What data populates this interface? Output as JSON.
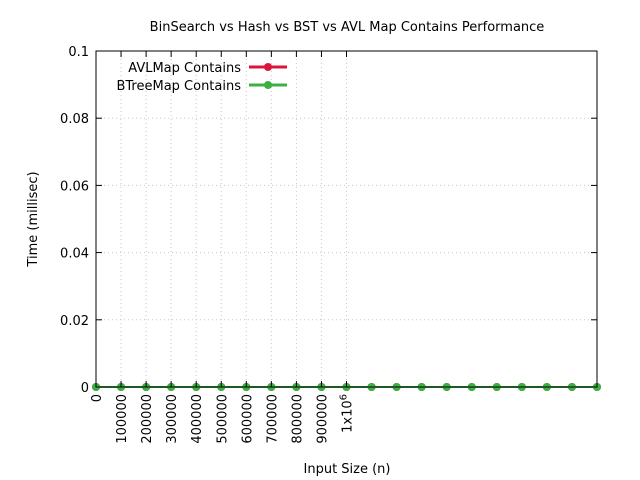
{
  "chart_data": {
    "type": "line",
    "title": "BinSearch vs Hash vs BST vs AVL Map Contains Performance",
    "xlabel": "Input Size (n)",
    "ylabel": "Time (millisec)",
    "xlim": [
      0,
      2000000
    ],
    "ylim": [
      0,
      0.1
    ],
    "x_ticks": [
      {
        "value": 0,
        "label": "0"
      },
      {
        "value": 100000,
        "label": "100000"
      },
      {
        "value": 200000,
        "label": "200000"
      },
      {
        "value": 300000,
        "label": "300000"
      },
      {
        "value": 400000,
        "label": "400000"
      },
      {
        "value": 500000,
        "label": "500000"
      },
      {
        "value": 600000,
        "label": "600000"
      },
      {
        "value": 700000,
        "label": "700000"
      },
      {
        "value": 800000,
        "label": "800000"
      },
      {
        "value": 900000,
        "label": "900000"
      },
      {
        "value": 1000000,
        "label": "1x10",
        "sup": "6"
      }
    ],
    "y_ticks": [
      {
        "value": 0,
        "label": "0"
      },
      {
        "value": 0.02,
        "label": "0.02"
      },
      {
        "value": 0.04,
        "label": "0.04"
      },
      {
        "value": 0.06,
        "label": "0.06"
      },
      {
        "value": 0.08,
        "label": "0.08"
      },
      {
        "value": 0.1,
        "label": "0.1"
      }
    ],
    "grid": true,
    "legend_position": "top-left",
    "x": [
      0,
      100000,
      200000,
      300000,
      400000,
      500000,
      600000,
      700000,
      800000,
      900000,
      1000000,
      1100000,
      1200000,
      1300000,
      1400000,
      1500000,
      1600000,
      1700000,
      1800000,
      1900000,
      2000000
    ],
    "series": [
      {
        "name": "AVLMap Contains",
        "color": "#dc143c",
        "values": [
          0,
          0,
          0,
          0,
          0,
          0,
          0,
          0,
          0,
          0,
          0,
          0,
          0,
          0,
          0,
          0,
          0,
          0,
          0,
          0,
          0
        ]
      },
      {
        "name": "BTreeMap Contains",
        "color": "#3cb043",
        "values": [
          0,
          0,
          0,
          0,
          0,
          0,
          0,
          0,
          0,
          0,
          0,
          0,
          0,
          0,
          0,
          0,
          0,
          0,
          0,
          0,
          0
        ]
      }
    ]
  }
}
